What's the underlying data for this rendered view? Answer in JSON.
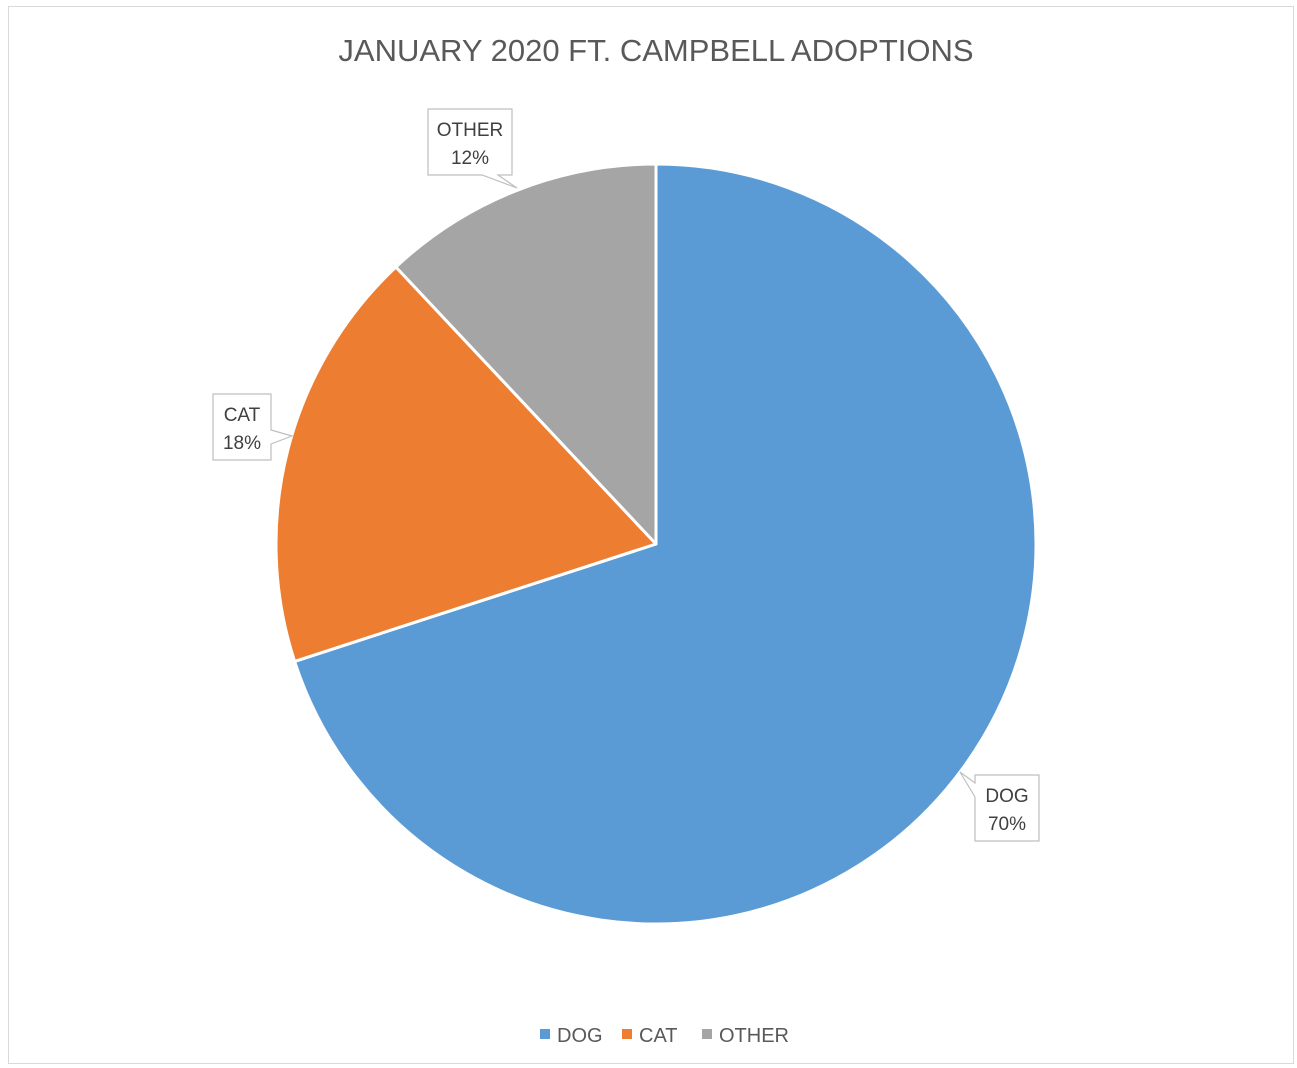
{
  "chart_data": {
    "type": "pie",
    "title": "JANUARY 2020 FT. CAMPBELL ADOPTIONS",
    "categories": [
      "DOG",
      "CAT",
      "OTHER"
    ],
    "values": [
      70,
      18,
      12
    ],
    "value_unit": "%",
    "data_labels": [
      {
        "category": "DOG",
        "value": "70%"
      },
      {
        "category": "CAT",
        "value": "18%"
      },
      {
        "category": "OTHER",
        "value": "12%"
      }
    ],
    "colors": {
      "DOG": "#5b9bd5",
      "CAT": "#ed7d31",
      "OTHER": "#a5a5a5"
    },
    "start_angle_deg": 0,
    "direction": "clockwise",
    "legend": {
      "placement": "bottom",
      "entries": [
        "DOG",
        "CAT",
        "OTHER"
      ]
    }
  }
}
